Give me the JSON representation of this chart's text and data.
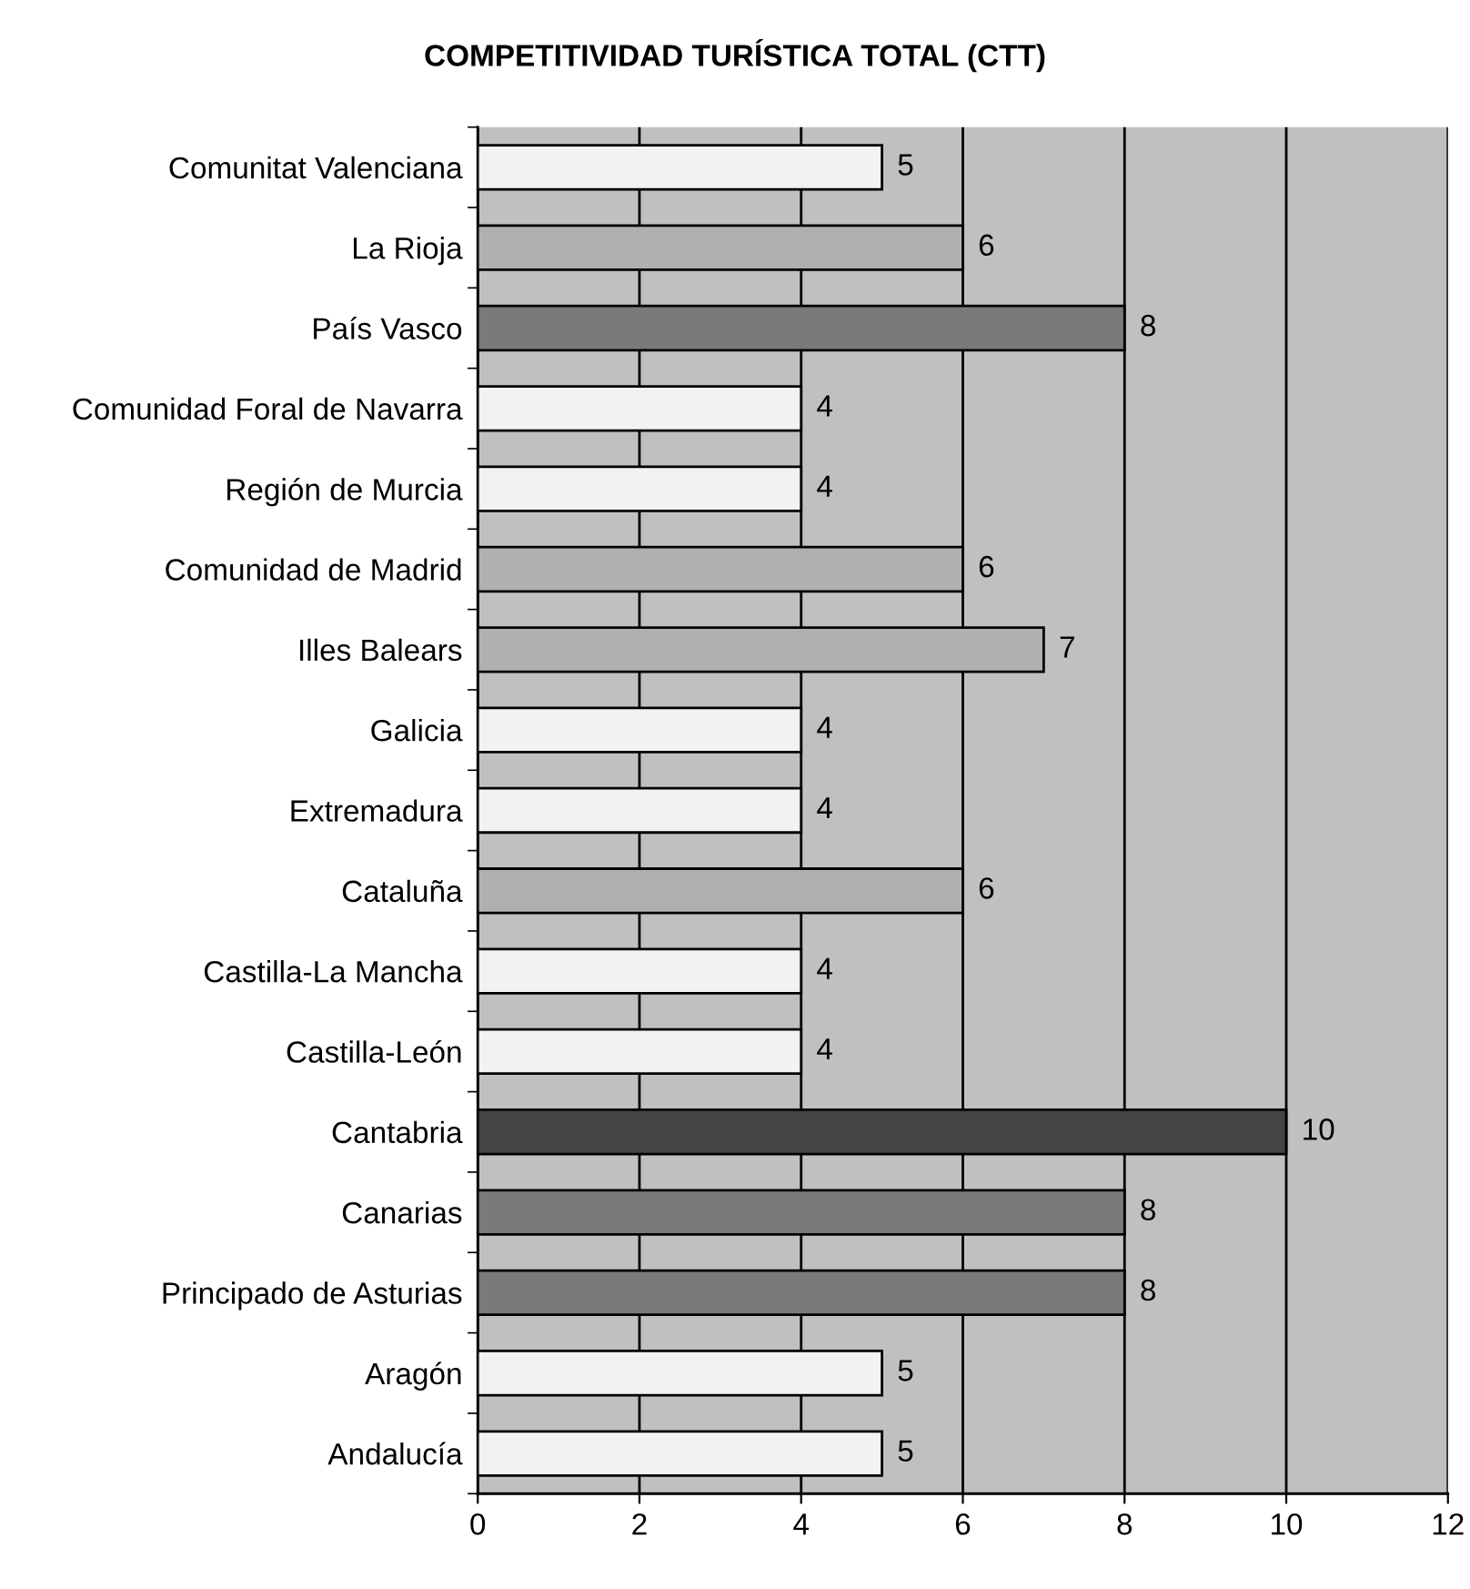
{
  "chart_data": {
    "type": "bar",
    "orientation": "horizontal",
    "title": "COMPETITIVIDAD TURÍSTICA TOTAL (CTT)",
    "categories": [
      "Comunitat Valenciana",
      "La Rioja",
      "País Vasco",
      "Comunidad Foral de Navarra",
      "Región de Murcia",
      "Comunidad de Madrid",
      "Illes Balears",
      "Galicia",
      "Extremadura",
      "Cataluña",
      "Castilla-La Mancha",
      "Castilla-León",
      "Cantabria",
      "Canarias",
      "Principado de Asturias",
      "Aragón",
      "Andalucía"
    ],
    "values": [
      5,
      6,
      8,
      4,
      4,
      6,
      7,
      4,
      4,
      6,
      4,
      4,
      10,
      8,
      8,
      5,
      5
    ],
    "colors": [
      "#f2f2f2",
      "#b0b0b0",
      "#7a7a7a",
      "#f2f2f2",
      "#f2f2f2",
      "#b0b0b0",
      "#b0b0b0",
      "#f2f2f2",
      "#f2f2f2",
      "#b0b0b0",
      "#f2f2f2",
      "#f2f2f2",
      "#444444",
      "#7a7a7a",
      "#7a7a7a",
      "#f2f2f2",
      "#f2f2f2"
    ],
    "xlim": [
      0,
      12
    ],
    "xticks": [
      0,
      2,
      4,
      6,
      8,
      10,
      12
    ],
    "grid": "x",
    "data_labels": true
  }
}
